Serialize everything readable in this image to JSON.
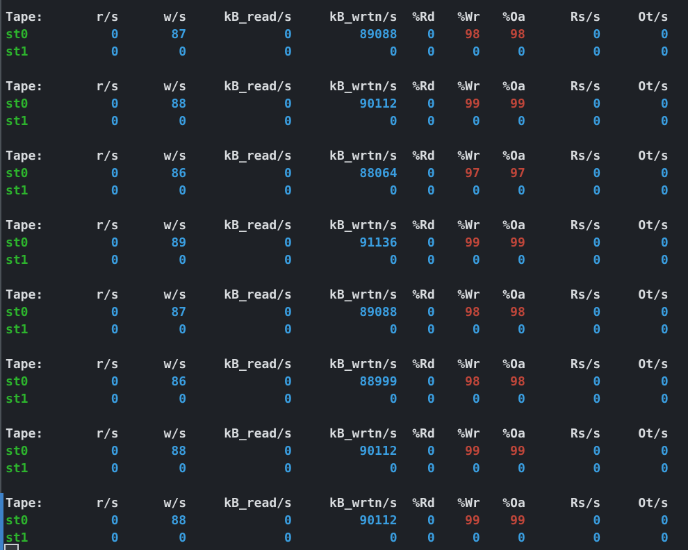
{
  "terminal": {
    "columns": [
      "Tape:",
      "r/s",
      "w/s",
      "kB_read/s",
      "kB_wrtn/s",
      "%Rd",
      "%Wr",
      "%Oa",
      "Rs/s",
      "Ot/s"
    ],
    "highlight_columns": [
      "%Wr",
      "%Oa"
    ],
    "colors": {
      "background": "#1e2126",
      "header_text": "#d9dcdf",
      "device_green": "#2db42d",
      "value_blue": "#3a9ee0",
      "alert_red": "#c0463a",
      "active_block_bar": "#3e82c9",
      "pane_border": "#4b5157"
    },
    "blocks": [
      {
        "rows": [
          {
            "device": "st0",
            "values": [
              "0",
              "87",
              "0",
              "89088",
              "0",
              "98",
              "98",
              "0",
              "0"
            ]
          },
          {
            "device": "st1",
            "values": [
              "0",
              "0",
              "0",
              "0",
              "0",
              "0",
              "0",
              "0",
              "0"
            ]
          }
        ]
      },
      {
        "rows": [
          {
            "device": "st0",
            "values": [
              "0",
              "88",
              "0",
              "90112",
              "0",
              "99",
              "99",
              "0",
              "0"
            ]
          },
          {
            "device": "st1",
            "values": [
              "0",
              "0",
              "0",
              "0",
              "0",
              "0",
              "0",
              "0",
              "0"
            ]
          }
        ]
      },
      {
        "rows": [
          {
            "device": "st0",
            "values": [
              "0",
              "86",
              "0",
              "88064",
              "0",
              "97",
              "97",
              "0",
              "0"
            ]
          },
          {
            "device": "st1",
            "values": [
              "0",
              "0",
              "0",
              "0",
              "0",
              "0",
              "0",
              "0",
              "0"
            ]
          }
        ]
      },
      {
        "rows": [
          {
            "device": "st0",
            "values": [
              "0",
              "89",
              "0",
              "91136",
              "0",
              "99",
              "99",
              "0",
              "0"
            ]
          },
          {
            "device": "st1",
            "values": [
              "0",
              "0",
              "0",
              "0",
              "0",
              "0",
              "0",
              "0",
              "0"
            ]
          }
        ]
      },
      {
        "rows": [
          {
            "device": "st0",
            "values": [
              "0",
              "87",
              "0",
              "89088",
              "0",
              "98",
              "98",
              "0",
              "0"
            ]
          },
          {
            "device": "st1",
            "values": [
              "0",
              "0",
              "0",
              "0",
              "0",
              "0",
              "0",
              "0",
              "0"
            ]
          }
        ]
      },
      {
        "rows": [
          {
            "device": "st0",
            "values": [
              "0",
              "86",
              "0",
              "88999",
              "0",
              "98",
              "98",
              "0",
              "0"
            ]
          },
          {
            "device": "st1",
            "values": [
              "0",
              "0",
              "0",
              "0",
              "0",
              "0",
              "0",
              "0",
              "0"
            ]
          }
        ]
      },
      {
        "rows": [
          {
            "device": "st0",
            "values": [
              "0",
              "88",
              "0",
              "90112",
              "0",
              "99",
              "99",
              "0",
              "0"
            ]
          },
          {
            "device": "st1",
            "values": [
              "0",
              "0",
              "0",
              "0",
              "0",
              "0",
              "0",
              "0",
              "0"
            ]
          }
        ]
      },
      {
        "rows": [
          {
            "device": "st0",
            "values": [
              "0",
              "88",
              "0",
              "90112",
              "0",
              "99",
              "99",
              "0",
              "0"
            ]
          },
          {
            "device": "st1",
            "values": [
              "0",
              "0",
              "0",
              "0",
              "0",
              "0",
              "0",
              "0",
              "0"
            ]
          }
        ]
      }
    ]
  }
}
